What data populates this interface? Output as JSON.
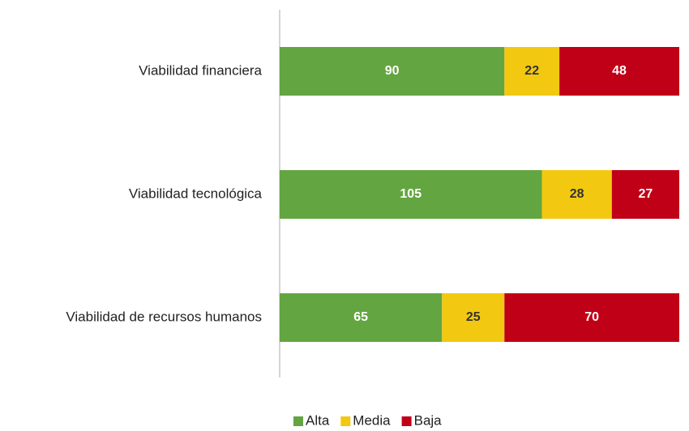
{
  "chart_data": {
    "type": "stacked_bar_horizontal",
    "categories": [
      "Viabilidad financiera",
      "Viabilidad tecnológica",
      "Viabilidad de recursos humanos"
    ],
    "series": [
      {
        "name": "Alta",
        "color": "#63a540",
        "values": [
          90,
          105,
          65
        ]
      },
      {
        "name": "Media",
        "color": "#f2c811",
        "values": [
          22,
          28,
          25
        ]
      },
      {
        "name": "Baja",
        "color": "#c00017",
        "values": [
          48,
          27,
          70
        ]
      }
    ],
    "xlim": [
      0,
      160
    ],
    "legend": "bottom"
  }
}
